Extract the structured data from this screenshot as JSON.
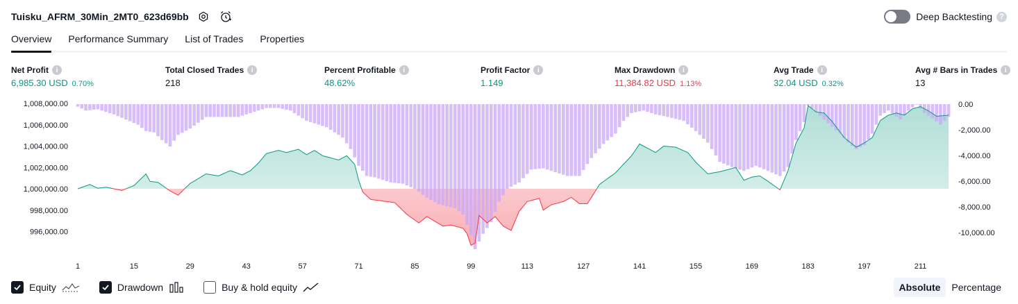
{
  "header": {
    "strategy_name": "Tuisku_AFRM_30Min_2MT0_623d69bb",
    "settings_icon": "gear-icon",
    "alert_icon": "alarm-clock-plus-icon",
    "deep_backtesting_label": "Deep Backtesting",
    "deep_backtesting_on": false,
    "help_icon": "question-icon"
  },
  "tabs": [
    {
      "label": "Overview",
      "active": true
    },
    {
      "label": "Performance Summary",
      "active": false
    },
    {
      "label": "List of Trades",
      "active": false
    },
    {
      "label": "Properties",
      "active": false
    }
  ],
  "metrics": [
    {
      "title": "Net Profit",
      "value": "6,985.30 USD",
      "pct": "0.70%",
      "tone": "pos"
    },
    {
      "title": "Total Closed Trades",
      "value": "218",
      "pct": "",
      "tone": "neutral"
    },
    {
      "title": "Percent Profitable",
      "value": "48.62%",
      "pct": "",
      "tone": "pos"
    },
    {
      "title": "Profit Factor",
      "value": "1.149",
      "pct": "",
      "tone": "pos"
    },
    {
      "title": "Max Drawdown",
      "value": "11,384.82 USD",
      "pct": "1.13%",
      "tone": "neg"
    },
    {
      "title": "Avg Trade",
      "value": "32.04 USD",
      "pct": "0.32%",
      "tone": "pos"
    },
    {
      "title": "Avg # Bars in Trades",
      "value": "13",
      "pct": "",
      "tone": "neutral"
    }
  ],
  "chart_data": {
    "type": "line",
    "x_ticks": [
      1,
      15,
      29,
      43,
      57,
      71,
      85,
      99,
      113,
      127,
      141,
      155,
      169,
      183,
      197,
      211
    ],
    "x_range": [
      1,
      218
    ],
    "left_axis": {
      "ticks": [
        "1,008,000.00",
        "1,006,000.00",
        "1,004,000.00",
        "1,002,000.00",
        "1,000,000.00",
        "998,000.00",
        "996,000.00"
      ],
      "range": [
        994500,
        1008000
      ],
      "baseline": 1000000
    },
    "right_axis": {
      "ticks": [
        "0.00",
        "-2,000.00",
        "-4,000.00",
        "-6,000.00",
        "-8,000.00",
        "-10,000.00"
      ],
      "range": [
        -11500,
        0
      ]
    },
    "series": [
      {
        "name": "Equity",
        "axis": "left",
        "anchors": [
          [
            1,
            1000000
          ],
          [
            4,
            1000400
          ],
          [
            6,
            1000050
          ],
          [
            8,
            1000150
          ],
          [
            12,
            999850
          ],
          [
            15,
            1000300
          ],
          [
            18,
            1001400
          ],
          [
            19,
            1000700
          ],
          [
            21,
            1000600
          ],
          [
            24,
            999800
          ],
          [
            26,
            999400
          ],
          [
            29,
            1000500
          ],
          [
            33,
            1001400
          ],
          [
            36,
            1001200
          ],
          [
            39,
            1001700
          ],
          [
            42,
            1001300
          ],
          [
            44,
            1001700
          ],
          [
            46,
            1002400
          ],
          [
            48,
            1003300
          ],
          [
            51,
            1003600
          ],
          [
            53,
            1003400
          ],
          [
            56,
            1003700
          ],
          [
            58,
            1003200
          ],
          [
            60,
            1003600
          ],
          [
            62,
            1003100
          ],
          [
            64,
            1002900
          ],
          [
            66,
            1002700
          ],
          [
            68,
            1003100
          ],
          [
            70,
            1002300
          ],
          [
            71,
            1000800
          ],
          [
            72,
            999700
          ],
          [
            74,
            999000
          ],
          [
            78,
            998800
          ],
          [
            80,
            998700
          ],
          [
            83,
            997600
          ],
          [
            86,
            996800
          ],
          [
            88,
            997400
          ],
          [
            92,
            996500
          ],
          [
            94,
            996600
          ],
          [
            97,
            996300
          ],
          [
            98,
            995800
          ],
          [
            99,
            994700
          ],
          [
            100,
            994900
          ],
          [
            101,
            997500
          ],
          [
            103,
            996800
          ],
          [
            105,
            997400
          ],
          [
            107,
            996500
          ],
          [
            109,
            996100
          ],
          [
            111,
            997900
          ],
          [
            113,
            998800
          ],
          [
            116,
            999100
          ],
          [
            117,
            998000
          ],
          [
            119,
            998500
          ],
          [
            122,
            998800
          ],
          [
            124,
            999200
          ],
          [
            126,
            998600
          ],
          [
            128,
            998600
          ],
          [
            131,
            1000400
          ],
          [
            135,
            1001500
          ],
          [
            139,
            1003100
          ],
          [
            141,
            1004200
          ],
          [
            143,
            1003800
          ],
          [
            145,
            1003400
          ],
          [
            147,
            1004000
          ],
          [
            150,
            1003900
          ],
          [
            153,
            1003400
          ],
          [
            155,
            1002500
          ],
          [
            158,
            1001400
          ],
          [
            161,
            1001600
          ],
          [
            163,
            1001800
          ],
          [
            165,
            1002000
          ],
          [
            167,
            1000800
          ],
          [
            169,
            1001100
          ],
          [
            171,
            1001200
          ],
          [
            173,
            1000700
          ],
          [
            176,
            999900
          ],
          [
            178,
            1001700
          ],
          [
            180,
            1004300
          ],
          [
            182,
            1005700
          ],
          [
            183,
            1007800
          ],
          [
            185,
            1007200
          ],
          [
            187,
            1007100
          ],
          [
            189,
            1006300
          ],
          [
            192,
            1004800
          ],
          [
            195,
            1003900
          ],
          [
            197,
            1004300
          ],
          [
            199,
            1004800
          ],
          [
            201,
            1006400
          ],
          [
            203,
            1006900
          ],
          [
            205,
            1007100
          ],
          [
            207,
            1006900
          ],
          [
            209,
            1007500
          ],
          [
            211,
            1007700
          ],
          [
            213,
            1007300
          ],
          [
            215,
            1006800
          ],
          [
            218,
            1006900
          ]
        ],
        "color_above": "#089981",
        "color_below": "#f23645"
      },
      {
        "name": "Drawdown",
        "axis": "right",
        "style": "bars",
        "color": "#c9a8f5",
        "anchors": [
          [
            1,
            -200
          ],
          [
            3,
            -500
          ],
          [
            6,
            -400
          ],
          [
            10,
            -800
          ],
          [
            13,
            -1200
          ],
          [
            16,
            -1600
          ],
          [
            18,
            -2100
          ],
          [
            20,
            -2200
          ],
          [
            22,
            -2800
          ],
          [
            24,
            -3300
          ],
          [
            26,
            -2400
          ],
          [
            29,
            -1900
          ],
          [
            33,
            -1000
          ],
          [
            37,
            -1000
          ],
          [
            41,
            -1000
          ],
          [
            45,
            -600
          ],
          [
            48,
            -300
          ],
          [
            51,
            -300
          ],
          [
            54,
            -500
          ],
          [
            58,
            -1300
          ],
          [
            63,
            -1800
          ],
          [
            67,
            -2600
          ],
          [
            69,
            -3500
          ],
          [
            71,
            -4800
          ],
          [
            73,
            -5600
          ],
          [
            75,
            -5700
          ],
          [
            79,
            -6100
          ],
          [
            82,
            -6200
          ],
          [
            85,
            -6600
          ],
          [
            88,
            -7300
          ],
          [
            91,
            -7800
          ],
          [
            95,
            -8100
          ],
          [
            97,
            -8600
          ],
          [
            99,
            -10200
          ],
          [
            100,
            -11300
          ],
          [
            102,
            -10100
          ],
          [
            104,
            -9200
          ],
          [
            106,
            -7600
          ],
          [
            108,
            -6600
          ],
          [
            111,
            -6100
          ],
          [
            114,
            -5100
          ],
          [
            117,
            -5000
          ],
          [
            120,
            -5300
          ],
          [
            123,
            -5600
          ],
          [
            126,
            -5600
          ],
          [
            129,
            -4200
          ],
          [
            132,
            -3100
          ],
          [
            135,
            -2300
          ],
          [
            137,
            -1300
          ],
          [
            139,
            -700
          ],
          [
            142,
            -500
          ],
          [
            145,
            -800
          ],
          [
            148,
            -1000
          ],
          [
            152,
            -1300
          ],
          [
            155,
            -2100
          ],
          [
            158,
            -3000
          ],
          [
            161,
            -4500
          ],
          [
            164,
            -4900
          ],
          [
            167,
            -5200
          ],
          [
            170,
            -4800
          ],
          [
            173,
            -5200
          ],
          [
            176,
            -5600
          ],
          [
            178,
            -4900
          ],
          [
            180,
            -2800
          ],
          [
            182,
            -1400
          ],
          [
            183,
            -100
          ],
          [
            185,
            -600
          ],
          [
            188,
            -1500
          ],
          [
            191,
            -2300
          ],
          [
            193,
            -3000
          ],
          [
            195,
            -3500
          ],
          [
            197,
            -3200
          ],
          [
            199,
            -2300
          ],
          [
            201,
            -900
          ],
          [
            203,
            -500
          ],
          [
            206,
            -1200
          ],
          [
            208,
            -500
          ],
          [
            210,
            0
          ],
          [
            212,
            -700
          ],
          [
            214,
            -1100
          ],
          [
            216,
            -1600
          ],
          [
            218,
            -1000
          ]
        ]
      }
    ],
    "grid": false,
    "legend_placement": "bottom-left"
  },
  "legend": [
    {
      "label": "Equity",
      "checked": true,
      "icon": "equity-line-icon"
    },
    {
      "label": "Drawdown",
      "checked": true,
      "icon": "drawdown-bars-icon"
    },
    {
      "label": "Buy & hold equity",
      "checked": false,
      "icon": "buy-hold-line-icon"
    }
  ],
  "scale_toggle": {
    "absolute_label": "Absolute",
    "percentage_label": "Percentage",
    "selected": "Absolute"
  }
}
